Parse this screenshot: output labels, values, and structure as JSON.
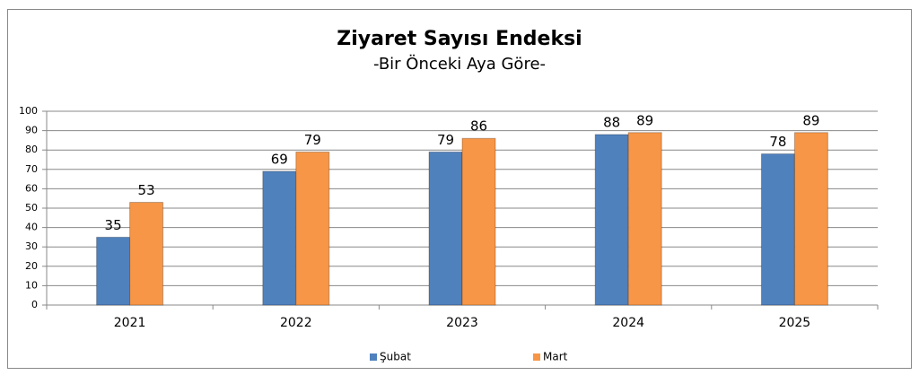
{
  "chart_data": {
    "type": "bar",
    "title": "Ziyaret Sayısı Endeksi",
    "subtitle": "-Bir Önceki Aya Göre-",
    "categories": [
      "2021",
      "2022",
      "2023",
      "2024",
      "2025"
    ],
    "series": [
      {
        "name": "Şubat",
        "color": "#4f81bd",
        "values": [
          35,
          69,
          79,
          88,
          78
        ]
      },
      {
        "name": "Mart",
        "color": "#f79646",
        "values": [
          53,
          79,
          86,
          89,
          89
        ]
      }
    ],
    "ylim": [
      0,
      100
    ],
    "yticks": [
      0,
      10,
      20,
      30,
      40,
      50,
      60,
      70,
      80,
      90,
      100
    ],
    "grid": true,
    "legend": "bottom"
  }
}
